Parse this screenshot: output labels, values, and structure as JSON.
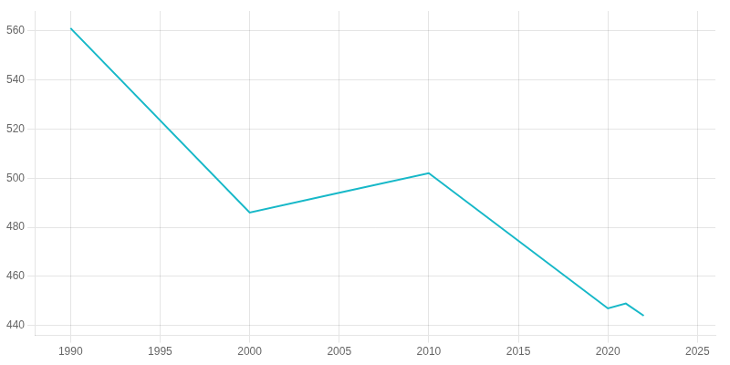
{
  "chart_data": {
    "type": "line",
    "x": [
      1990,
      2000,
      2005,
      2010,
      2020,
      2021,
      2022
    ],
    "values": [
      561,
      486,
      494,
      502,
      447,
      449,
      444
    ],
    "color": "#17b8c8",
    "xlim": [
      1988,
      2026
    ],
    "ylim": [
      436,
      568
    ],
    "xticks": [
      1990,
      1995,
      2000,
      2005,
      2010,
      2015,
      2020,
      2025
    ],
    "yticks": [
      440,
      460,
      480,
      500,
      520,
      540,
      560
    ],
    "grid": true
  }
}
